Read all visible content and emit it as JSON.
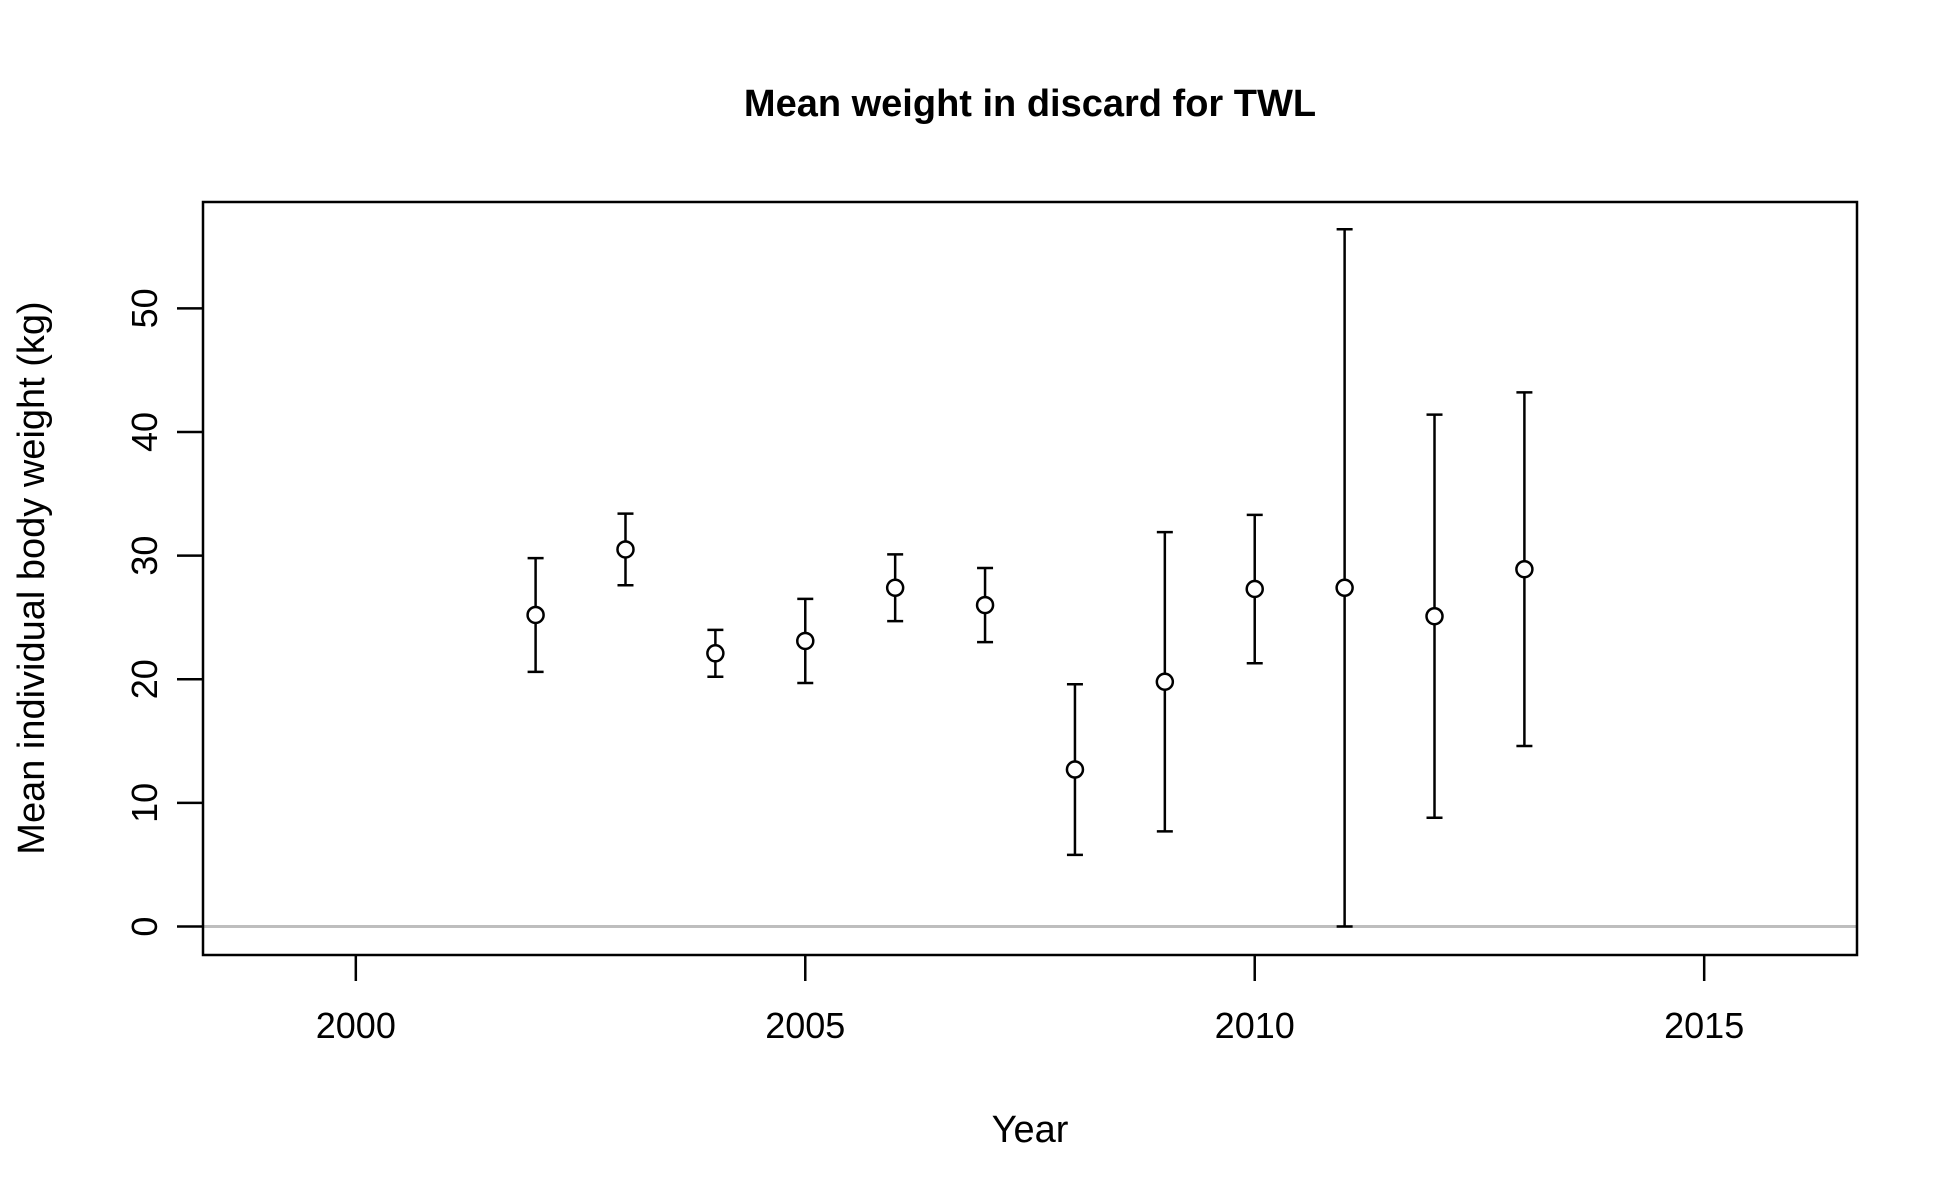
{
  "chart_data": {
    "type": "scatter",
    "title": "Mean weight in discard for TWL",
    "xlabel": "Year",
    "ylabel": "Mean individual body weight (kg)",
    "xlim": [
      1998.3,
      2016.7
    ],
    "ylim": [
      -2.3,
      58.6
    ],
    "x_ticks": [
      2000,
      2005,
      2010,
      2015
    ],
    "y_ticks": [
      0,
      10,
      20,
      30,
      40,
      50
    ],
    "grid": false,
    "legend": "none",
    "reference_line": {
      "y": 0,
      "color": "#bebebe"
    },
    "colors": {
      "points": "#000000",
      "error_bars": "#000000",
      "frame": "#000000"
    },
    "series": [
      {
        "points": [
          {
            "x": 2002,
            "y": 25.2,
            "lower": 20.6,
            "upper": 29.8
          },
          {
            "x": 2003,
            "y": 30.5,
            "lower": 27.6,
            "upper": 33.4
          },
          {
            "x": 2004,
            "y": 22.1,
            "lower": 20.2,
            "upper": 24.0
          },
          {
            "x": 2005,
            "y": 23.1,
            "lower": 19.7,
            "upper": 26.5
          },
          {
            "x": 2006,
            "y": 27.4,
            "lower": 24.7,
            "upper": 30.1
          },
          {
            "x": 2007,
            "y": 26.0,
            "lower": 23.0,
            "upper": 29.0
          },
          {
            "x": 2008,
            "y": 12.7,
            "lower": 5.8,
            "upper": 19.6
          },
          {
            "x": 2009,
            "y": 19.8,
            "lower": 7.7,
            "upper": 31.9
          },
          {
            "x": 2010,
            "y": 27.3,
            "lower": 21.3,
            "upper": 33.3
          },
          {
            "x": 2011,
            "y": 27.4,
            "lower": 0.0,
            "upper": 56.4
          },
          {
            "x": 2012,
            "y": 25.1,
            "lower": 8.8,
            "upper": 41.4
          },
          {
            "x": 2013,
            "y": 28.9,
            "lower": 14.6,
            "upper": 43.2
          }
        ]
      }
    ]
  }
}
